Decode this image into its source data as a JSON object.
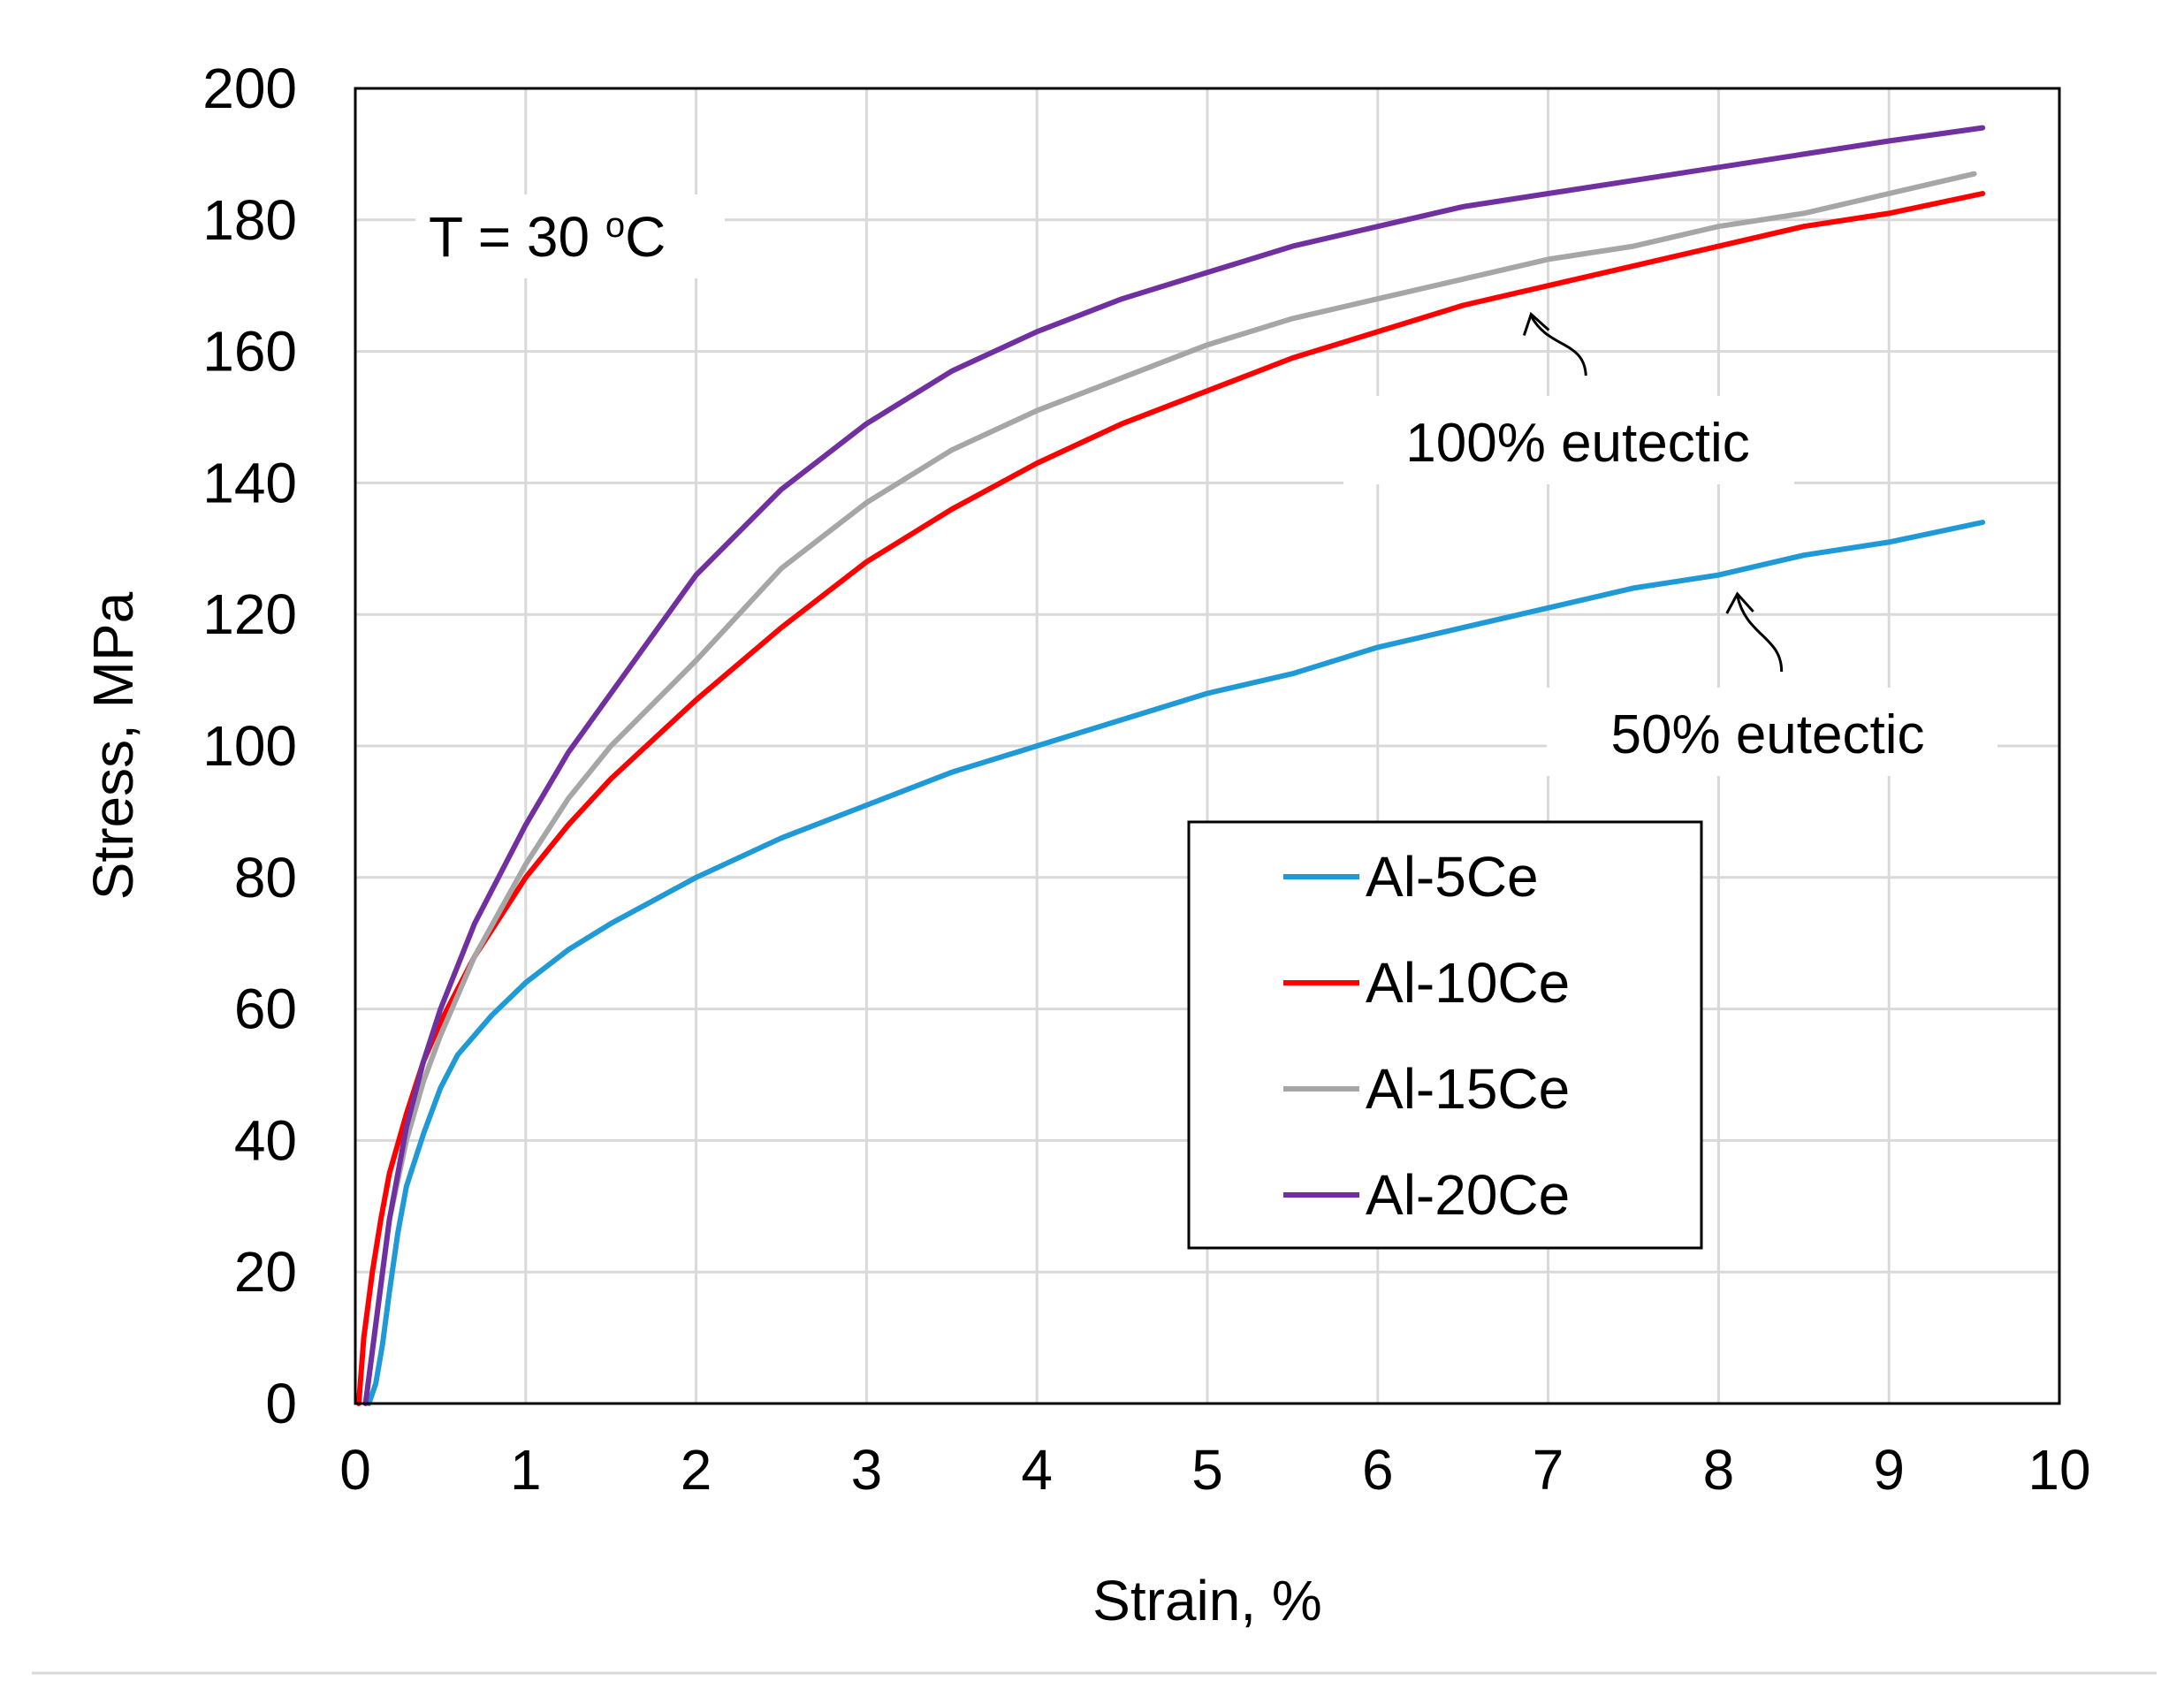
{
  "chart_data": {
    "type": "line",
    "title": "",
    "xlabel": "Strain, %",
    "ylabel": "Stress, MPa",
    "xlim": [
      0,
      10
    ],
    "ylim": [
      0,
      200
    ],
    "x_ticks": [
      "0",
      "1",
      "2",
      "3",
      "4",
      "5",
      "6",
      "7",
      "8",
      "9",
      "10"
    ],
    "y_ticks": [
      "0",
      "20",
      "40",
      "60",
      "80",
      "100",
      "120",
      "140",
      "160",
      "180",
      "200"
    ],
    "grid": true,
    "legend_position": "center-right",
    "series": [
      {
        "name": "Al-5Ce",
        "color": "#1f9ad6",
        "x": [
          0.08,
          0.12,
          0.16,
          0.2,
          0.25,
          0.3,
          0.4,
          0.5,
          0.6,
          0.8,
          1.0,
          1.25,
          1.5,
          2.0,
          2.5,
          3.0,
          3.5,
          4.0,
          4.5,
          5.0,
          5.5,
          6.0,
          6.5,
          7.0,
          7.5,
          8.0,
          8.5,
          9.0,
          9.55
        ],
        "y": [
          0,
          3,
          9,
          17,
          26,
          33,
          41,
          48,
          53,
          59,
          64,
          69,
          73,
          80,
          86,
          91,
          96,
          100,
          104,
          108,
          111,
          115,
          118,
          121,
          124,
          126,
          129,
          131,
          134
        ]
      },
      {
        "name": "Al-10Ce",
        "color": "#ff0000",
        "x": [
          0.02,
          0.05,
          0.1,
          0.15,
          0.2,
          0.3,
          0.4,
          0.5,
          0.7,
          1.0,
          1.25,
          1.5,
          2.0,
          2.5,
          3.0,
          3.5,
          4.0,
          4.5,
          5.0,
          5.5,
          6.0,
          6.5,
          7.0,
          7.5,
          8.0,
          8.5,
          9.0,
          9.55
        ],
        "y": [
          0,
          10,
          20,
          28,
          35,
          44,
          52,
          58,
          68,
          80,
          88,
          95,
          107,
          118,
          128,
          136,
          143,
          149,
          154,
          159,
          163,
          167,
          170,
          173,
          176,
          179,
          181,
          184
        ]
      },
      {
        "name": "Al-15Ce",
        "color": "#a6a6a6",
        "x": [
          0.06,
          0.1,
          0.15,
          0.2,
          0.3,
          0.4,
          0.5,
          0.7,
          1.0,
          1.25,
          1.5,
          2.0,
          2.5,
          3.0,
          3.5,
          4.0,
          4.5,
          5.0,
          5.5,
          6.0,
          6.5,
          7.0,
          7.5,
          8.0,
          8.5,
          9.0,
          9.5
        ],
        "y": [
          0,
          8,
          18,
          28,
          40,
          49,
          56,
          68,
          82,
          92,
          100,
          113,
          127,
          137,
          145,
          151,
          156,
          161,
          165,
          168,
          171,
          174,
          176,
          179,
          181,
          184,
          187
        ]
      },
      {
        "name": "Al-20Ce",
        "color": "#7030a0",
        "x": [
          0.06,
          0.1,
          0.15,
          0.2,
          0.3,
          0.4,
          0.5,
          0.7,
          1.0,
          1.25,
          1.5,
          2.0,
          2.5,
          3.0,
          3.5,
          4.0,
          4.5,
          5.0,
          5.5,
          6.0,
          6.5,
          7.0,
          7.5,
          8.0,
          8.5,
          9.0,
          9.55
        ],
        "y": [
          0,
          8,
          18,
          28,
          42,
          52,
          60,
          73,
          88,
          99,
          108,
          126,
          139,
          149,
          157,
          163,
          168,
          172,
          176,
          179,
          182,
          184,
          186,
          188,
          190,
          192,
          194
        ]
      }
    ],
    "annotations": [
      {
        "id": "temperature",
        "text": "T = 30 ",
        "superscript": "o",
        "suffix": "C"
      },
      {
        "id": "label-100",
        "text": "100% eutectic",
        "points_to_x": 6.9,
        "points_to_y": 167
      },
      {
        "id": "label-50",
        "text": "50% eutectic",
        "points_to_x": 8.1,
        "points_to_y": 125
      }
    ]
  }
}
